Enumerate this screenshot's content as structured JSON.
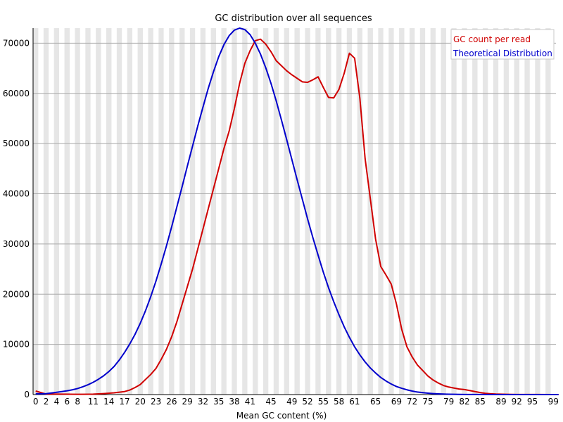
{
  "chart_data": {
    "type": "line",
    "title": "GC distribution over all sequences",
    "xlabel": "Mean GC content (%)",
    "ylabel": "",
    "xlim": [
      0,
      100
    ],
    "ylim": [
      0,
      73000
    ],
    "grid": true,
    "legend_position": "top-right",
    "x_tick_labels": [
      "0",
      "2",
      "4",
      "6",
      "8",
      "11",
      "14",
      "17",
      "20",
      "23",
      "26",
      "29",
      "32",
      "35",
      "38",
      "41",
      "45",
      "49",
      "52",
      "55",
      "58",
      "61",
      "65",
      "69",
      "72",
      "75",
      "79",
      "82",
      "85",
      "89",
      "92",
      "95",
      "99"
    ],
    "y_ticks": [
      0,
      10000,
      20000,
      30000,
      40000,
      50000,
      60000,
      70000
    ],
    "y_tick_labels": [
      "0",
      "10000",
      "20000",
      "30000",
      "40000",
      "50000",
      "60000",
      "70000"
    ],
    "series": [
      {
        "name": "GC count per read",
        "color": "#d00000",
        "points": [
          [
            0,
            700
          ],
          [
            2,
            100
          ],
          [
            5,
            80
          ],
          [
            8,
            60
          ],
          [
            11,
            80
          ],
          [
            13,
            200
          ],
          [
            15,
            350
          ],
          [
            17,
            600
          ],
          [
            18,
            900
          ],
          [
            19,
            1400
          ],
          [
            20,
            2000
          ],
          [
            21,
            3000
          ],
          [
            22,
            4000
          ],
          [
            23,
            5200
          ],
          [
            24,
            7000
          ],
          [
            25,
            9000
          ],
          [
            26,
            11500
          ],
          [
            27,
            14500
          ],
          [
            28,
            18000
          ],
          [
            29,
            21500
          ],
          [
            30,
            25000
          ],
          [
            31,
            29000
          ],
          [
            32,
            33000
          ],
          [
            33,
            37000
          ],
          [
            34,
            41000
          ],
          [
            35,
            45000
          ],
          [
            36,
            49000
          ],
          [
            37,
            52500
          ],
          [
            38,
            57000
          ],
          [
            39,
            62000
          ],
          [
            40,
            66000
          ],
          [
            41,
            68500
          ],
          [
            42,
            70500
          ],
          [
            43,
            70800
          ],
          [
            44,
            69800
          ],
          [
            45,
            68300
          ],
          [
            46,
            66500
          ],
          [
            47,
            65500
          ],
          [
            48,
            64500
          ],
          [
            49,
            63700
          ],
          [
            50,
            63000
          ],
          [
            51,
            62300
          ],
          [
            52,
            62200
          ],
          [
            53,
            62700
          ],
          [
            54,
            63300
          ],
          [
            55,
            61200
          ],
          [
            56,
            59200
          ],
          [
            57,
            59100
          ],
          [
            58,
            60800
          ],
          [
            59,
            64000
          ],
          [
            60,
            68000
          ],
          [
            61,
            67000
          ],
          [
            62,
            59000
          ],
          [
            63,
            47000
          ],
          [
            64,
            39000
          ],
          [
            65,
            31000
          ],
          [
            66,
            25500
          ],
          [
            67,
            23800
          ],
          [
            68,
            22000
          ],
          [
            69,
            18000
          ],
          [
            70,
            13000
          ],
          [
            71,
            9500
          ],
          [
            72,
            7500
          ],
          [
            73,
            5900
          ],
          [
            74,
            4800
          ],
          [
            75,
            3700
          ],
          [
            76,
            2900
          ],
          [
            77,
            2300
          ],
          [
            78,
            1800
          ],
          [
            79,
            1500
          ],
          [
            80,
            1300
          ],
          [
            81,
            1100
          ],
          [
            82,
            1000
          ],
          [
            83,
            800
          ],
          [
            84,
            600
          ],
          [
            85,
            400
          ],
          [
            86,
            250
          ],
          [
            87,
            150
          ],
          [
            88,
            100
          ],
          [
            90,
            50
          ],
          [
            92,
            20
          ],
          [
            95,
            10
          ],
          [
            99,
            5
          ],
          [
            100,
            5
          ]
        ]
      },
      {
        "name": "Theoretical Distribution",
        "color": "#0000cc",
        "points": [
          [
            0,
            150
          ],
          [
            1,
            150
          ],
          [
            2,
            180
          ],
          [
            3,
            320
          ],
          [
            4,
            450
          ],
          [
            5,
            600
          ],
          [
            6,
            750
          ],
          [
            7,
            950
          ],
          [
            8,
            1200
          ],
          [
            9,
            1550
          ],
          [
            10,
            1950
          ],
          [
            11,
            2450
          ],
          [
            12,
            3050
          ],
          [
            13,
            3750
          ],
          [
            14,
            4600
          ],
          [
            15,
            5600
          ],
          [
            16,
            6900
          ],
          [
            17,
            8400
          ],
          [
            18,
            10100
          ],
          [
            19,
            12000
          ],
          [
            20,
            14200
          ],
          [
            21,
            16700
          ],
          [
            22,
            19500
          ],
          [
            23,
            22600
          ],
          [
            24,
            26000
          ],
          [
            25,
            29600
          ],
          [
            26,
            33400
          ],
          [
            27,
            37400
          ],
          [
            28,
            41400
          ],
          [
            29,
            45500
          ],
          [
            30,
            49500
          ],
          [
            31,
            53500
          ],
          [
            32,
            57300
          ],
          [
            33,
            61000
          ],
          [
            34,
            64300
          ],
          [
            35,
            67300
          ],
          [
            36,
            69700
          ],
          [
            37,
            71500
          ],
          [
            38,
            72600
          ],
          [
            39,
            73000
          ],
          [
            40,
            72700
          ],
          [
            41,
            71700
          ],
          [
            42,
            70000
          ],
          [
            43,
            67800
          ],
          [
            44,
            65100
          ],
          [
            45,
            62000
          ],
          [
            46,
            58500
          ],
          [
            47,
            54700
          ],
          [
            48,
            50800
          ],
          [
            49,
            46800
          ],
          [
            50,
            42800
          ],
          [
            51,
            38900
          ],
          [
            52,
            35000
          ],
          [
            53,
            31300
          ],
          [
            54,
            27800
          ],
          [
            55,
            24400
          ],
          [
            56,
            21300
          ],
          [
            57,
            18500
          ],
          [
            58,
            15900
          ],
          [
            59,
            13500
          ],
          [
            60,
            11400
          ],
          [
            61,
            9500
          ],
          [
            62,
            7900
          ],
          [
            63,
            6500
          ],
          [
            64,
            5300
          ],
          [
            65,
            4300
          ],
          [
            66,
            3400
          ],
          [
            67,
            2700
          ],
          [
            68,
            2100
          ],
          [
            69,
            1600
          ],
          [
            70,
            1250
          ],
          [
            71,
            950
          ],
          [
            72,
            700
          ],
          [
            73,
            500
          ],
          [
            74,
            380
          ],
          [
            75,
            280
          ],
          [
            76,
            200
          ],
          [
            77,
            140
          ],
          [
            78,
            100
          ],
          [
            79,
            70
          ],
          [
            80,
            50
          ],
          [
            82,
            20
          ],
          [
            85,
            10
          ],
          [
            90,
            5
          ],
          [
            100,
            5
          ]
        ]
      }
    ]
  }
}
